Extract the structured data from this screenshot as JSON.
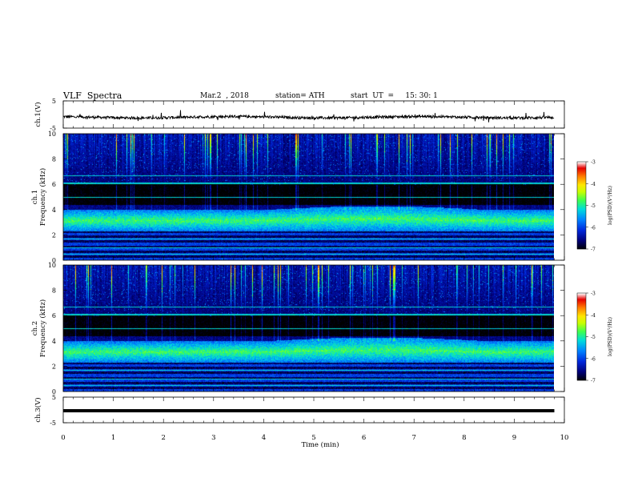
{
  "header": {
    "title": "VLF  Spectra",
    "date": "Mar.2  , 2018",
    "station": "station= ATH",
    "start": "start  UT  =     15: 30: 1"
  },
  "chart_data": [
    {
      "type": "line",
      "name": "ch1-waveform",
      "ylabel": "ch.1(V)",
      "yticks": [
        "5",
        "-5"
      ],
      "ylim": [
        -5,
        5
      ],
      "xlim": [
        0,
        10
      ],
      "x_end": 9.8,
      "level": -1.0,
      "noise": 0.5,
      "line_color": "#000000"
    },
    {
      "type": "heatmap",
      "name": "ch1-spectrogram",
      "ylabel": "ch.1\nFrequency  (kHz)",
      "yticks": [
        "0",
        "2",
        "4",
        "6",
        "8",
        "10"
      ],
      "ylim": [
        0,
        10
      ],
      "xlim": [
        0,
        10
      ],
      "x_end": 9.8,
      "colorbar": {
        "label": "log(PSD)(V²/Hz)",
        "ticks": [
          "-3",
          "-4",
          "-5",
          "-6",
          "-7"
        ],
        "range": [
          -7,
          -3
        ]
      },
      "emission_band": {
        "low_khz": 2.3,
        "high_khz": 4.0,
        "peak_log_psd": -4.8
      },
      "background_log_psd": -6.6
    },
    {
      "type": "heatmap",
      "name": "ch2-spectrogram",
      "ylabel": "ch.2\nFrequency  (kHz)",
      "yticks": [
        "0",
        "2",
        "4",
        "6",
        "8",
        "10"
      ],
      "ylim": [
        0,
        10
      ],
      "xlim": [
        0,
        10
      ],
      "x_end": 9.8,
      "colorbar": {
        "label": "log(PSD)(V²/Hz)",
        "ticks": [
          "-3",
          "-4",
          "-5",
          "-6",
          "-7"
        ],
        "range": [
          -7,
          -3
        ]
      },
      "emission_band": {
        "low_khz": 2.3,
        "high_khz": 4.0,
        "peak_log_psd": -4.8
      },
      "background_log_psd": -6.6
    },
    {
      "type": "line",
      "name": "ch3-waveform",
      "ylabel": "ch.3(V)",
      "yticks": [
        "5",
        "-5"
      ],
      "ylim": [
        -5,
        5
      ],
      "xlim": [
        0,
        10
      ],
      "x_end": 9.8,
      "level": 0.0,
      "noise": 0.0,
      "line_color": "#000000"
    }
  ],
  "xaxis": {
    "label": "Time  (min)",
    "ticks": [
      "0",
      "1",
      "2",
      "3",
      "4",
      "5",
      "6",
      "7",
      "8",
      "9",
      "10"
    ]
  }
}
